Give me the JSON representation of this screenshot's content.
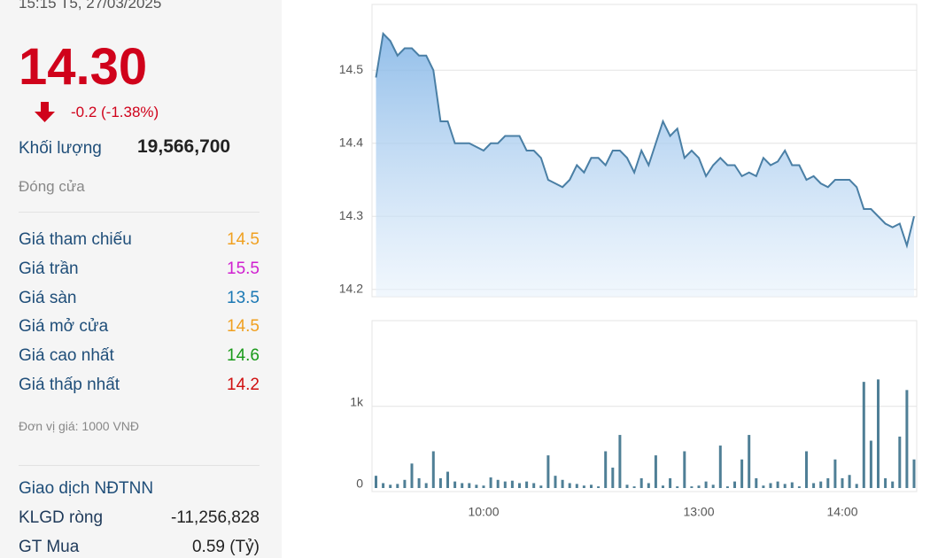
{
  "panel": {
    "timestamp": "15:15 T5, 27/03/2025",
    "price": "14.30",
    "change": "-0.2 (-1.38%)",
    "volume_label": "Khối lượng",
    "volume": "19,566,700",
    "status": "Đóng cửa",
    "rows": [
      {
        "label": "Giá tham chiếu",
        "value": "14.5",
        "color": "#f0a020"
      },
      {
        "label": "Giá trần",
        "value": "15.5",
        "color": "#d020d0"
      },
      {
        "label": "Giá sàn",
        "value": "13.5",
        "color": "#1a78b4"
      },
      {
        "label": "Giá mở cửa",
        "value": "14.5",
        "color": "#f0a020"
      },
      {
        "label": "Giá cao nhất",
        "value": "14.6",
        "color": "#1a9a1a"
      },
      {
        "label": "Giá thấp nhất",
        "value": "14.2",
        "color": "#d01010"
      }
    ],
    "unit_note": "Đơn vị giá: 1000 VNĐ",
    "foreign_title": "Giao dịch NĐTNN",
    "foreign_rows": [
      {
        "label": "KLGD ròng",
        "value": "-11,256,828"
      },
      {
        "label": "GT Mua",
        "value": "0.59 (Tỷ)"
      }
    ]
  },
  "chart_data": {
    "type": "line",
    "grid": true,
    "categories": [
      null,
      null,
      null,
      null,
      null,
      null,
      null,
      null,
      null,
      null,
      null,
      null,
      null,
      null,
      null,
      "10:00",
      null,
      null,
      null,
      null,
      null,
      null,
      null,
      null,
      null,
      null,
      null,
      null,
      null,
      null,
      null,
      null,
      null,
      null,
      null,
      null,
      null,
      null,
      null,
      null,
      null,
      null,
      null,
      null,
      null,
      "13:00",
      null,
      null,
      null,
      null,
      null,
      null,
      null,
      null,
      null,
      null,
      null,
      null,
      null,
      null,
      null,
      null,
      null,
      null,
      null,
      "14:00",
      null,
      null,
      null,
      null,
      null,
      null,
      null,
      null,
      null,
      null
    ],
    "ylim": [
      14.19,
      14.59
    ],
    "yticks": [
      14.2,
      14.3,
      14.4,
      14.5
    ],
    "y2lim": [
      0,
      2050
    ],
    "y2ticks": [
      0,
      {
        "value": 1000,
        "label": "1k"
      }
    ],
    "series": [
      {
        "name": "Giá",
        "type": "line",
        "color": "#4a7fa5",
        "values": [
          14.49,
          14.55,
          14.54,
          14.52,
          14.53,
          14.53,
          14.52,
          14.52,
          14.5,
          14.43,
          14.43,
          14.4,
          14.4,
          14.4,
          14.395,
          14.39,
          14.4,
          14.4,
          14.41,
          14.41,
          14.41,
          14.39,
          14.39,
          14.38,
          14.35,
          14.345,
          14.34,
          14.35,
          14.37,
          14.36,
          14.38,
          14.38,
          14.37,
          14.39,
          14.39,
          14.38,
          14.36,
          14.39,
          14.37,
          14.4,
          14.43,
          14.41,
          14.42,
          14.38,
          14.39,
          14.38,
          14.355,
          14.37,
          14.38,
          14.37,
          14.37,
          14.355,
          14.36,
          14.355,
          14.38,
          14.37,
          14.375,
          14.39,
          14.37,
          14.37,
          14.35,
          14.355,
          14.345,
          14.34,
          14.35,
          14.35,
          14.35,
          14.34,
          14.31,
          14.31,
          14.3,
          14.29,
          14.285,
          14.29,
          14.26,
          14.3
        ]
      },
      {
        "name": "Khối lượng",
        "type": "bar",
        "axis": "y2",
        "color": "#4f7f96",
        "values": [
          150,
          60,
          40,
          50,
          100,
          300,
          120,
          60,
          450,
          120,
          200,
          80,
          60,
          60,
          40,
          30,
          130,
          100,
          80,
          90,
          60,
          80,
          60,
          30,
          400,
          150,
          100,
          60,
          50,
          30,
          40,
          20,
          450,
          250,
          650,
          40,
          20,
          120,
          60,
          400,
          30,
          120,
          20,
          450,
          20,
          30,
          80,
          40,
          520,
          20,
          80,
          350,
          650,
          120,
          30,
          60,
          80,
          50,
          70,
          20,
          450,
          60,
          80,
          120,
          350,
          120,
          160,
          50,
          1300,
          580,
          1330,
          120,
          80,
          630,
          1200,
          350
        ]
      }
    ]
  }
}
